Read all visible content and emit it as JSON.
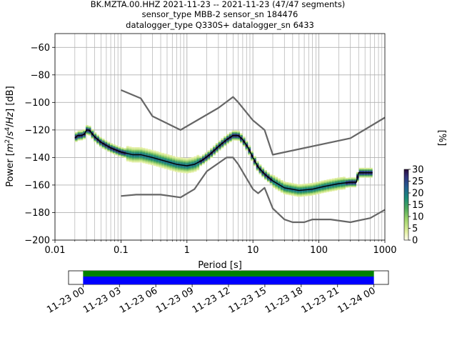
{
  "title_lines": [
    "BK.MZTA.00.HHZ   2021-11-23 -- 2021-11-23  (47/47 segments)",
    "sensor_type MBB-2 sensor_sn 184476",
    "datalogger_type Q330S+ datalogger_sn 6433"
  ],
  "colors": {
    "mean_line": "#000000",
    "noise_model": "#666666",
    "grid": "#b0b0b0",
    "coverage_green": "#008000",
    "coverage_blue": "#0000ff"
  },
  "chart_data": [
    {
      "type": "heatmap",
      "subtype": "probabilistic power spectral density",
      "xlabel": "Period [s]",
      "ylabel": "Power [$m^2/s^4/Hz$] [dB]",
      "xscale": "log",
      "xlim": [
        0.01,
        1000
      ],
      "ylim": [
        -200,
        -50
      ],
      "xticks": [
        0.01,
        0.1,
        1,
        10,
        100,
        1000
      ],
      "xtick_labels": [
        "0.01",
        "0.1",
        "1",
        "10",
        "100",
        "1000"
      ],
      "yticks": [
        -200,
        -180,
        -160,
        -140,
        -120,
        -100,
        -80,
        -60
      ],
      "ytick_labels": [
        "−200",
        "−180",
        "−160",
        "−140",
        "−120",
        "−100",
        "−80",
        "−60"
      ],
      "grid": true,
      "mean_psd": {
        "period": [
          0.02,
          0.022,
          0.025,
          0.028,
          0.03,
          0.033,
          0.04,
          0.05,
          0.07,
          0.1,
          0.15,
          0.2,
          0.3,
          0.5,
          0.7,
          1.0,
          1.3,
          1.7,
          2.2,
          3.0,
          4.0,
          5.0,
          6.0,
          7.0,
          8.5,
          10.0,
          12.0,
          15.0,
          20.0,
          30.0,
          50.0,
          80.0,
          120.0,
          200.0,
          300.0,
          350.0,
          370.0,
          400.0,
          600.0,
          650.0
        ],
        "power_db": [
          -126,
          -124,
          -124,
          -123,
          -120,
          -120,
          -125,
          -129,
          -133,
          -136,
          -138,
          -138,
          -140,
          -143,
          -145,
          -146,
          -145,
          -142,
          -138,
          -132,
          -127,
          -124,
          -124,
          -127,
          -133,
          -140,
          -147,
          -152,
          -157,
          -162,
          -164,
          -163,
          -161,
          -159,
          -158,
          -158,
          -158,
          -151,
          -151,
          -151
        ]
      },
      "noise_models": [
        {
          "period": [
            0.1,
            0.2,
            0.3,
            0.8,
            3.0,
            4.4,
            5.0,
            6.0,
            10.0,
            15.0,
            20.0,
            300.0,
            1000.0
          ],
          "power_db": [
            -91,
            -97,
            -110,
            -120,
            -104,
            -98,
            -96,
            -100,
            -113,
            -120,
            -138,
            -126,
            -111
          ]
        },
        {
          "period": [
            0.1,
            0.17,
            0.4,
            0.8,
            1.3,
            2.0,
            4.0,
            5.0,
            6.0,
            10.0,
            12.0,
            15.0,
            20.0,
            30.0,
            40.0,
            60.0,
            80.0,
            100.0,
            150.0,
            300.0,
            600.0,
            1000.0
          ],
          "power_db": [
            -168,
            -167,
            -167,
            -169,
            -163,
            -150,
            -140,
            -140,
            -145,
            -163,
            -166,
            -162,
            -177,
            -185,
            -187,
            -187,
            -185,
            -185,
            -185,
            -187,
            -184,
            -178
          ]
        }
      ],
      "colorbar": {
        "label": "[%]",
        "min": 0,
        "max": 30,
        "ticks": [
          0,
          5,
          10,
          15,
          20,
          25,
          30
        ],
        "tick_labels": [
          "0",
          "5",
          "10",
          "15",
          "20",
          "25",
          "30"
        ]
      }
    },
    {
      "type": "bar",
      "subtype": "data availability",
      "series": [
        {
          "color": "green",
          "start": "11-23 00",
          "end": "11-24 00"
        },
        {
          "color": "blue",
          "start": "11-23 00",
          "end": "11-24 00"
        }
      ],
      "xticks": [
        "11-23 00",
        "11-23 03",
        "11-23 06",
        "11-23 09",
        "11-23 12",
        "11-23 15",
        "11-23 18",
        "11-23 21",
        "11-24 00"
      ],
      "xtick_hours": [
        0,
        3,
        6,
        9,
        12,
        15,
        18,
        21,
        24
      ],
      "xlim_hours": [
        -1.2,
        25.2
      ]
    }
  ]
}
